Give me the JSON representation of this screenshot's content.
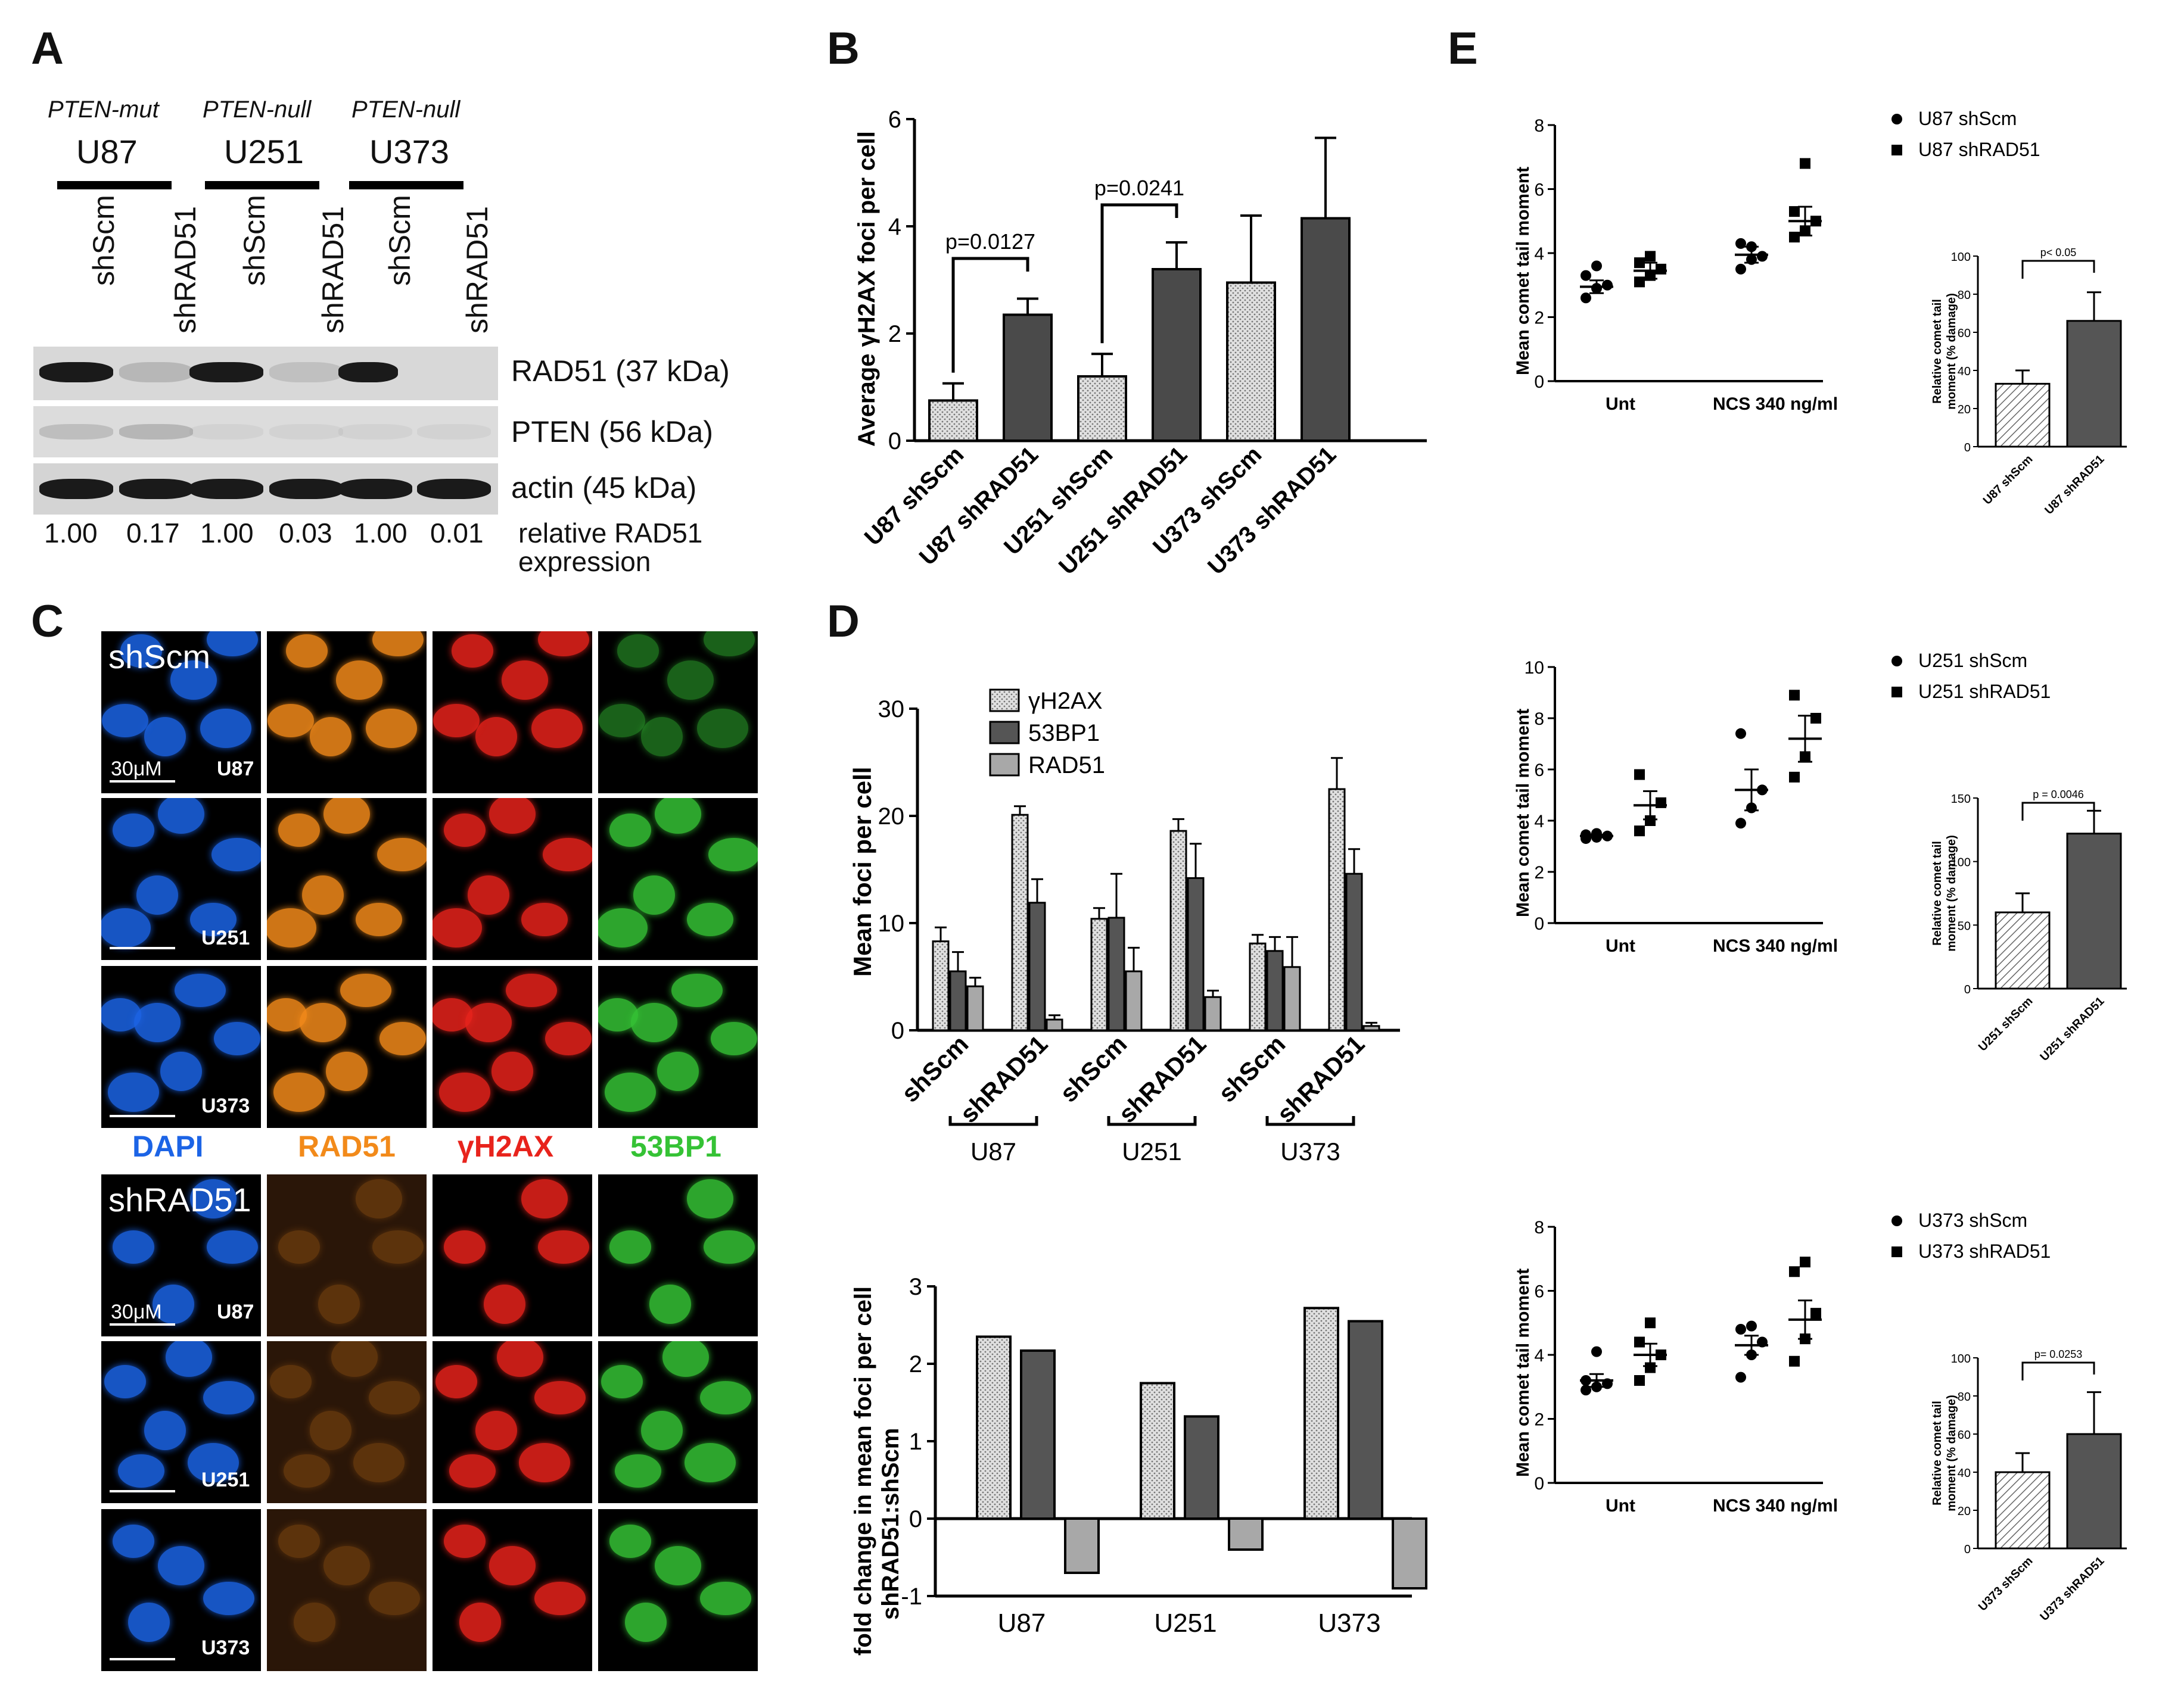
{
  "panels": {
    "A": "A",
    "B": "B",
    "C": "C",
    "D": "D",
    "E": "E"
  },
  "panel_a": {
    "genotypes": [
      "PTEN-mut",
      "PTEN-null",
      "PTEN-null"
    ],
    "cell_lines": [
      "U87",
      "U251",
      "U373"
    ],
    "lanes": [
      "shScm",
      "shRAD51",
      "shScm",
      "shRAD51",
      "shScm",
      "shRAD51"
    ],
    "blots": [
      "RAD51 (37 kDa)",
      "PTEN (56 kDa)",
      "actin (45 kDa)"
    ],
    "relative_values": [
      "1.00",
      "0.17",
      "1.00",
      "0.03",
      "1.00",
      "0.01"
    ],
    "relative_label_1": "relative RAD51",
    "relative_label_2": "expression",
    "band_intensity": {
      "RAD51": [
        1.0,
        0.17,
        1.0,
        0.03,
        1.0,
        0.01
      ],
      "PTEN": [
        0.35,
        0.45,
        0.05,
        0.05,
        0.05,
        0.1
      ],
      "actin": [
        1,
        1,
        1,
        1,
        1,
        1
      ]
    }
  },
  "panel_c": {
    "shscm_label": "shScm",
    "shrad51_label": "shRAD51",
    "scale_text": "30μM",
    "row_labels": [
      "U87",
      "U251",
      "U373"
    ],
    "channels": [
      "DAPI",
      "RAD51",
      "γH2AX",
      "53BP1"
    ],
    "channel_colors": [
      "#1c64e6",
      "#f28a1a",
      "#e8231c",
      "#35c235"
    ]
  },
  "chart_data": [
    {
      "type": "bar",
      "panel": "B",
      "categories": [
        "U87 shScm",
        "U87 shRAD51",
        "U251 shScm",
        "U251 shRAD51",
        "U373 shScm",
        "U373 shRAD51"
      ],
      "values": [
        0.75,
        2.35,
        1.2,
        3.2,
        2.95,
        4.15
      ],
      "errors": [
        0.32,
        0.3,
        0.42,
        0.5,
        1.25,
        1.5
      ],
      "ylabel": "Average γH2AX foci per cell",
      "ylim": [
        0,
        6
      ],
      "yticks": [
        "0",
        "2",
        "4",
        "6"
      ],
      "annotations": [
        "p=0.0127",
        "p=0.0241"
      ],
      "colors": [
        "#c8c8c8",
        "#4a4a4a",
        "#c8c8c8",
        "#4a4a4a",
        "#c8c8c8",
        "#4a4a4a"
      ]
    },
    {
      "type": "bar",
      "panel": "D-top",
      "categories": [
        "shScm",
        "shRAD51",
        "shScm",
        "shRAD51",
        "shScm",
        "shRAD51"
      ],
      "groups": [
        "U87",
        "U251",
        "U373"
      ],
      "series": [
        {
          "name": "γH2AX",
          "values": [
            8.3,
            20.1,
            10.4,
            18.6,
            8.1,
            22.5
          ],
          "errors": [
            1.3,
            0.8,
            1.0,
            1.1,
            0.8,
            2.9
          ]
        },
        {
          "name": "53BP1",
          "values": [
            5.5,
            11.9,
            10.5,
            14.2,
            7.4,
            14.6
          ],
          "errors": [
            1.8,
            2.2,
            4.1,
            3.2,
            1.3,
            2.3
          ]
        },
        {
          "name": "RAD51",
          "values": [
            4.1,
            1.0,
            5.5,
            3.1,
            5.9,
            0.4
          ],
          "errors": [
            0.8,
            0.4,
            2.2,
            0.6,
            2.8,
            0.3
          ]
        }
      ],
      "ylabel": "Mean foci per cell",
      "ylim": [
        0,
        30
      ],
      "yticks": [
        "0",
        "10",
        "20",
        "30"
      ]
    },
    {
      "type": "bar",
      "panel": "D-bottom",
      "categories": [
        "U87",
        "U251",
        "U373"
      ],
      "series": [
        {
          "values": [
            2.35,
            1.75,
            2.72
          ]
        },
        {
          "values": [
            2.17,
            1.32,
            2.55
          ]
        },
        {
          "values": [
            -0.7,
            -0.4,
            -0.9
          ]
        }
      ],
      "ylabel_1": "fold change in mean foci per cell",
      "ylabel_2": "shRAD51:shScm",
      "ylim": [
        -1,
        3
      ],
      "yticks": [
        "-1",
        "0",
        "1",
        "2",
        "3"
      ]
    },
    {
      "type": "scatter",
      "panel": "E-U87",
      "groups": [
        "Unt",
        "NCS 340 ng/ml"
      ],
      "series": [
        {
          "name": "U87 shScm",
          "marker": "circle",
          "unt": [
            2.6,
            2.9,
            3.0,
            3.3,
            3.6
          ],
          "ncs": [
            3.5,
            3.8,
            3.9,
            4.3,
            4.2
          ],
          "mean": [
            2.95,
            3.95
          ],
          "sem": [
            0.2,
            0.25
          ]
        },
        {
          "name": "U87 shRAD51",
          "marker": "square",
          "unt": [
            3.1,
            3.3,
            3.5,
            3.7,
            3.9
          ],
          "ncs": [
            4.5,
            4.7,
            5.0,
            5.3,
            6.8
          ],
          "mean": [
            3.45,
            5.0
          ],
          "sem": [
            0.25,
            0.45
          ]
        }
      ],
      "ylabel": "Mean comet tail moment",
      "ylim": [
        0,
        8
      ],
      "yticks": [
        "0",
        "2",
        "4",
        "6",
        "8"
      ]
    },
    {
      "type": "bar",
      "panel": "E-U87-inset",
      "categories": [
        "U87 shScm",
        "U87 shRAD51"
      ],
      "values": [
        33,
        66
      ],
      "errors": [
        7,
        15
      ],
      "ylabel_1": "Relative comet tail",
      "ylabel_2": "moment (% damage)",
      "ylim": [
        0,
        100
      ],
      "yticks": [
        "0",
        "20",
        "40",
        "60",
        "80",
        "100"
      ],
      "annotation": "p< 0.05"
    },
    {
      "type": "scatter",
      "panel": "E-U251",
      "groups": [
        "Unt",
        "NCS 340 ng/ml"
      ],
      "series": [
        {
          "name": "U251 shScm",
          "marker": "circle",
          "unt": [
            3.3,
            3.35,
            3.4,
            3.45,
            3.5
          ],
          "ncs": [
            3.9,
            4.5,
            5.2,
            7.4
          ],
          "mean": [
            3.4,
            5.2
          ],
          "sem": [
            0.05,
            0.8
          ]
        },
        {
          "name": "U251 shRAD51",
          "marker": "square",
          "unt": [
            3.6,
            4.0,
            4.7,
            5.8
          ],
          "ncs": [
            5.7,
            6.5,
            8.0,
            8.9
          ],
          "mean": [
            4.6,
            7.2
          ],
          "sem": [
            0.55,
            0.9
          ]
        }
      ],
      "ylabel": "Mean comet tail moment",
      "ylim": [
        0,
        10
      ],
      "yticks": [
        "0",
        "2",
        "4",
        "6",
        "8",
        "10"
      ]
    },
    {
      "type": "bar",
      "panel": "E-U251-inset",
      "categories": [
        "U251 shScm",
        "U251 shRAD51"
      ],
      "values": [
        60,
        122
      ],
      "errors": [
        15,
        18
      ],
      "ylabel_1": "Relative comet tail",
      "ylabel_2": "moment (% damage)",
      "ylim": [
        0,
        150
      ],
      "yticks": [
        "0",
        "50",
        "100",
        "150"
      ],
      "annotation": "p = 0.0046"
    },
    {
      "type": "scatter",
      "panel": "E-U373",
      "groups": [
        "Unt",
        "NCS 340 ng/ml"
      ],
      "series": [
        {
          "name": "U373 shScm",
          "marker": "circle",
          "unt": [
            2.9,
            3.0,
            3.1,
            3.2,
            4.1
          ],
          "ncs": [
            3.3,
            4.0,
            4.4,
            4.8,
            4.9
          ],
          "mean": [
            3.2,
            4.3
          ],
          "sem": [
            0.2,
            0.3
          ]
        },
        {
          "name": "U373 shRAD51",
          "marker": "square",
          "unt": [
            3.2,
            3.6,
            4.0,
            4.4,
            5.0
          ],
          "ncs": [
            3.8,
            4.5,
            5.3,
            6.6,
            6.9
          ],
          "mean": [
            4.0,
            5.1
          ],
          "sem": [
            0.35,
            0.6
          ]
        }
      ],
      "ylabel": "Mean comet tail moment",
      "ylim": [
        0,
        8
      ],
      "yticks": [
        "0",
        "2",
        "4",
        "6",
        "8"
      ]
    },
    {
      "type": "bar",
      "panel": "E-U373-inset",
      "categories": [
        "U373 shScm",
        "U373 shRAD51"
      ],
      "values": [
        40,
        60
      ],
      "errors": [
        10,
        22
      ],
      "ylabel_1": "Relative comet tail",
      "ylabel_2": "moment (% damage)",
      "ylim": [
        0,
        100
      ],
      "yticks": [
        "0",
        "20",
        "40",
        "60",
        "80",
        "100"
      ],
      "annotation": "p= 0.0253"
    }
  ]
}
